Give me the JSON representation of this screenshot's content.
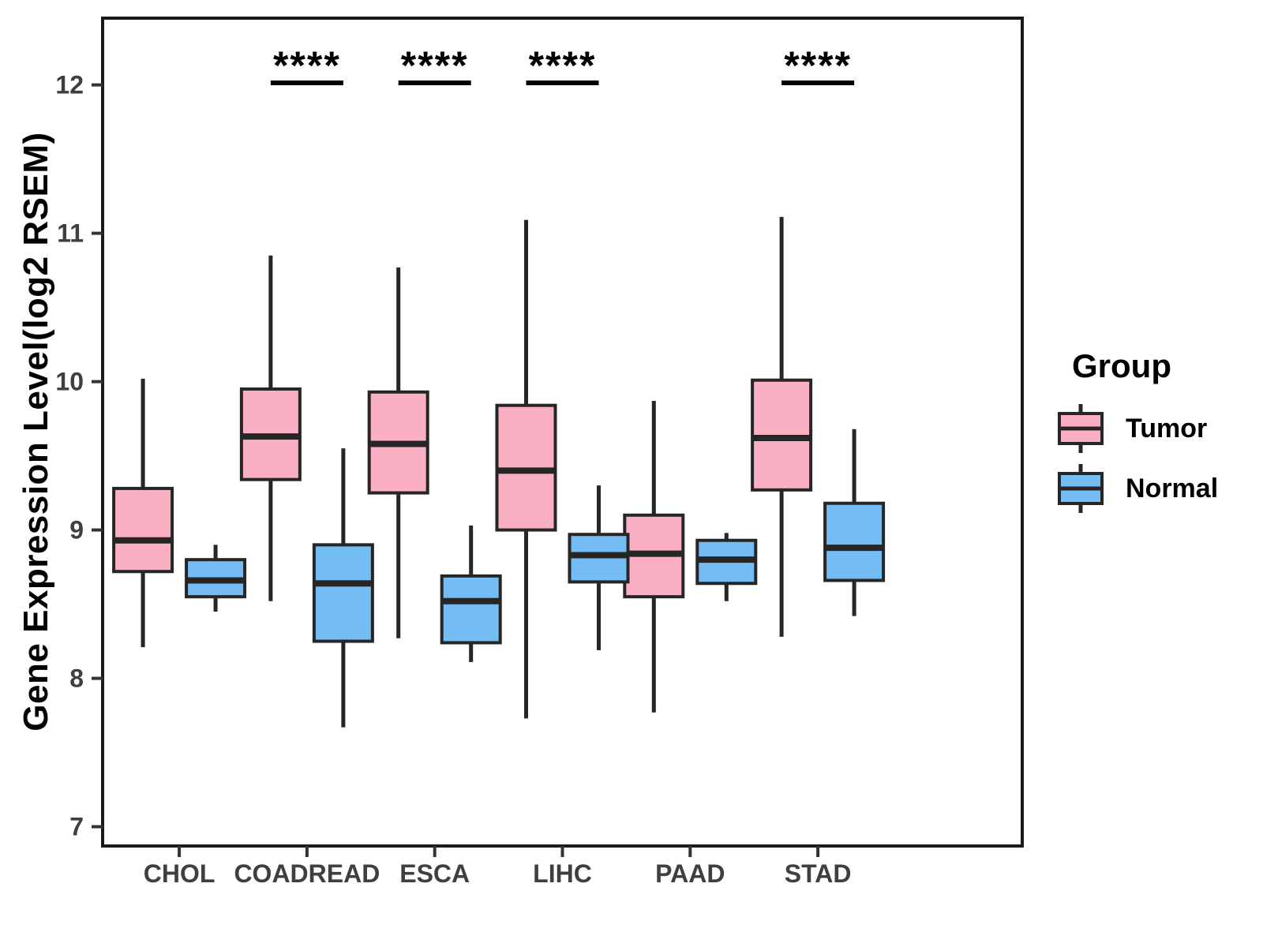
{
  "y_axis": {
    "label": "Gene Expression Level(log2 RSEM)",
    "ticks": [
      7,
      8,
      9,
      10,
      11,
      12
    ],
    "value_top": 12.45,
    "value_bottom": 6.87
  },
  "x_axis": {
    "categories": [
      "CHOL",
      "COADREAD",
      "ESCA",
      "LIHC",
      "PAAD",
      "STAD"
    ]
  },
  "legend": {
    "title": "Group",
    "entries": [
      {
        "label": "Tumor",
        "color": "#FAAFC2"
      },
      {
        "label": "Normal",
        "color": "#74BDF3"
      }
    ]
  },
  "colors": {
    "tumor_fill": "#FAAFC2",
    "normal_fill": "#74BDF3",
    "box_stroke": "#262626",
    "panel_border": "#1A1A1A",
    "axis_text": "#3F3F3F",
    "significance": "#000000",
    "background": "#FFFFFF"
  },
  "chart_data": {
    "type": "boxplot",
    "title": "",
    "xlabel": "",
    "ylabel": "Gene Expression Level(log2 RSEM)",
    "ylim": [
      6.87,
      12.45
    ],
    "y_ticks": [
      7,
      8,
      9,
      10,
      11,
      12
    ],
    "grid": "off",
    "legend_position": "right",
    "categories": [
      "CHOL",
      "COADREAD",
      "ESCA",
      "LIHC",
      "PAAD",
      "STAD"
    ],
    "significance": [
      "",
      "****",
      "****",
      "****",
      "",
      "****"
    ],
    "series": [
      {
        "name": "Tumor",
        "color": "#FAAFC2",
        "boxes": [
          {
            "low": 8.21,
            "q1": 8.72,
            "median": 8.93,
            "q3": 9.28,
            "high": 10.02
          },
          {
            "low": 8.52,
            "q1": 9.34,
            "median": 9.63,
            "q3": 9.95,
            "high": 10.85
          },
          {
            "low": 8.27,
            "q1": 9.25,
            "median": 9.58,
            "q3": 9.93,
            "high": 10.77
          },
          {
            "low": 7.73,
            "q1": 9.0,
            "median": 9.4,
            "q3": 9.84,
            "high": 11.09
          },
          {
            "low": 7.77,
            "q1": 8.55,
            "median": 8.84,
            "q3": 9.1,
            "high": 9.87
          },
          {
            "low": 8.28,
            "q1": 9.27,
            "median": 9.62,
            "q3": 10.01,
            "high": 11.11
          }
        ]
      },
      {
        "name": "Normal",
        "color": "#74BDF3",
        "boxes": [
          {
            "low": 8.45,
            "q1": 8.55,
            "median": 8.66,
            "q3": 8.8,
            "high": 8.9
          },
          {
            "low": 7.67,
            "q1": 8.25,
            "median": 8.64,
            "q3": 8.9,
            "high": 9.55
          },
          {
            "low": 8.11,
            "q1": 8.24,
            "median": 8.52,
            "q3": 8.69,
            "high": 9.03
          },
          {
            "low": 8.19,
            "q1": 8.65,
            "median": 8.83,
            "q3": 8.97,
            "high": 9.3
          },
          {
            "low": 8.52,
            "q1": 8.64,
            "median": 8.8,
            "q3": 8.93,
            "high": 8.98
          },
          {
            "low": 8.42,
            "q1": 8.66,
            "median": 8.88,
            "q3": 9.18,
            "high": 9.68
          }
        ]
      }
    ]
  }
}
